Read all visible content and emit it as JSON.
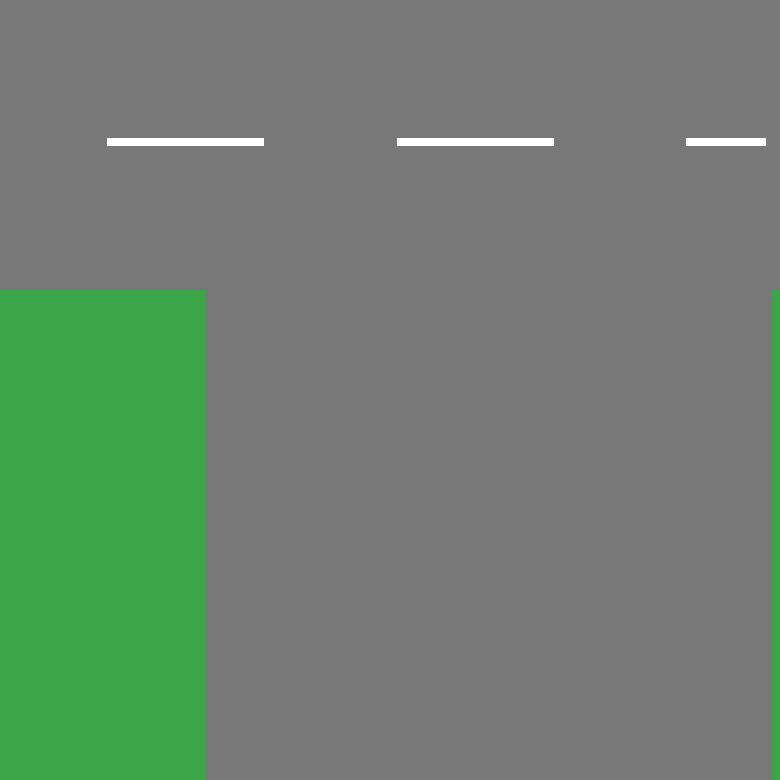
{
  "scene": {
    "road_color": "#787878",
    "lane_marking_color": "#ffffff",
    "grass_color": "#3aa648",
    "lane_markings": [
      {
        "name": "lane-dash-1"
      },
      {
        "name": "lane-dash-2"
      },
      {
        "name": "lane-dash-3"
      }
    ],
    "terrain": [
      {
        "name": "grass-block-left"
      },
      {
        "name": "grass-block-right"
      }
    ]
  }
}
